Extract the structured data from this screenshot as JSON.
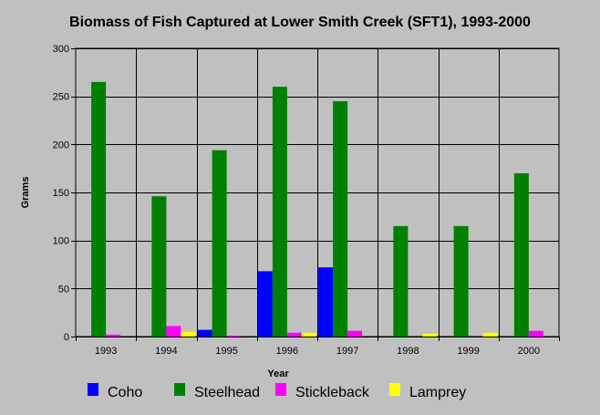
{
  "chart_data": {
    "type": "bar",
    "title": "Biomass of Fish Captured at Lower Smith Creek (SFT1), 1993-2000",
    "xlabel": "Year",
    "ylabel": "Grams",
    "ylim": [
      0,
      300
    ],
    "yticks": [
      0,
      50,
      100,
      150,
      200,
      250,
      300
    ],
    "categories": [
      "1993",
      "1994",
      "1995",
      "1996",
      "1997",
      "1998",
      "1999",
      "2000"
    ],
    "series": [
      {
        "name": "Coho",
        "color": "#0000ff",
        "values": [
          0,
          0,
          7,
          68,
          72,
          0,
          0,
          0
        ]
      },
      {
        "name": "Steelhead",
        "color": "#008000",
        "values": [
          265,
          146,
          194,
          260,
          245,
          115,
          115,
          170
        ]
      },
      {
        "name": "Stickleback",
        "color": "#ff00ff",
        "values": [
          2,
          11,
          1,
          4,
          6,
          0,
          0,
          6
        ]
      },
      {
        "name": "Lamprey",
        "color": "#ffff00",
        "values": [
          0,
          5,
          0,
          4,
          0,
          3,
          4,
          0
        ]
      }
    ],
    "grid": true,
    "legend_position": "bottom"
  }
}
